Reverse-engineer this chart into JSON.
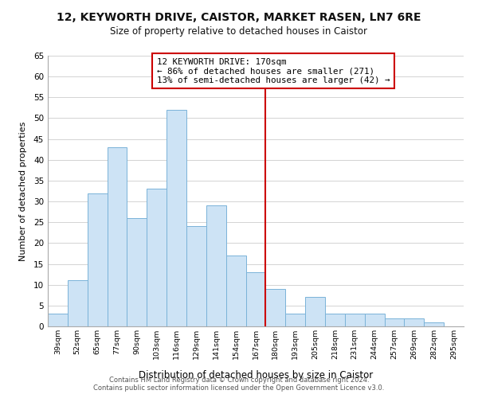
{
  "title": "12, KEYWORTH DRIVE, CAISTOR, MARKET RASEN, LN7 6RE",
  "subtitle": "Size of property relative to detached houses in Caistor",
  "xlabel": "Distribution of detached houses by size in Caistor",
  "ylabel": "Number of detached properties",
  "categories": [
    "39sqm",
    "52sqm",
    "65sqm",
    "77sqm",
    "90sqm",
    "103sqm",
    "116sqm",
    "129sqm",
    "141sqm",
    "154sqm",
    "167sqm",
    "180sqm",
    "193sqm",
    "205sqm",
    "218sqm",
    "231sqm",
    "244sqm",
    "257sqm",
    "269sqm",
    "282sqm",
    "295sqm"
  ],
  "values": [
    3,
    11,
    32,
    43,
    26,
    33,
    52,
    24,
    29,
    17,
    13,
    9,
    3,
    7,
    3,
    3,
    3,
    2,
    2,
    1,
    0
  ],
  "bar_color": "#cde3f5",
  "bar_edge_color": "#7ab3d8",
  "vline_x_index": 10.5,
  "vline_color": "#cc0000",
  "annotation_title": "12 KEYWORTH DRIVE: 170sqm",
  "annotation_line1": "← 86% of detached houses are smaller (271)",
  "annotation_line2": "13% of semi-detached houses are larger (42) →",
  "annotation_box_color": "#ffffff",
  "annotation_box_edge_color": "#cc0000",
  "ylim": [
    0,
    65
  ],
  "yticks": [
    0,
    5,
    10,
    15,
    20,
    25,
    30,
    35,
    40,
    45,
    50,
    55,
    60,
    65
  ],
  "footer_line1": "Contains HM Land Registry data © Crown copyright and database right 2024.",
  "footer_line2": "Contains public sector information licensed under the Open Government Licence v3.0.",
  "background_color": "#ffffff",
  "grid_color": "#cccccc"
}
